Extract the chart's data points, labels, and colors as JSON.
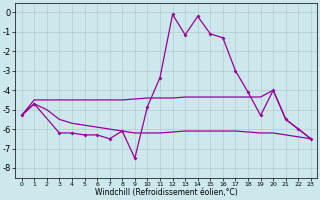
{
  "background_color": "#cce8ed",
  "grid_color": "#b0cccc",
  "line_color": "#990099",
  "xlabel": "Windchill (Refroidissement éolien,°C)",
  "x": [
    0,
    1,
    2,
    3,
    4,
    5,
    6,
    7,
    8,
    9,
    10,
    11,
    12,
    13,
    14,
    15,
    16,
    17,
    18,
    19,
    20,
    21,
    22,
    23
  ],
  "line_upper_x": [
    0,
    1,
    2,
    3,
    4,
    5,
    6,
    7,
    8,
    9,
    10,
    11,
    12,
    13,
    14,
    15,
    16,
    17,
    18,
    19,
    20,
    21,
    22,
    23
  ],
  "line_upper_y": [
    -5.3,
    -4.5,
    -4.5,
    -4.5,
    -4.5,
    -4.5,
    -4.5,
    -4.5,
    -4.5,
    -4.45,
    -4.4,
    -4.4,
    -4.4,
    -4.35,
    -4.35,
    -4.35,
    -4.35,
    -4.35,
    -4.35,
    -4.35,
    -4.0,
    -5.5,
    -6.0,
    -6.5
  ],
  "line_mid_x": [
    0,
    1,
    2,
    3,
    4,
    5,
    6,
    7,
    8,
    9,
    10,
    11,
    12,
    13,
    14,
    15,
    16,
    17,
    18,
    19,
    20,
    21,
    22,
    23
  ],
  "line_mid_y": [
    -5.3,
    -4.7,
    -5.0,
    -5.5,
    -5.7,
    -5.8,
    -5.9,
    -6.0,
    -6.1,
    -6.2,
    -6.2,
    -6.2,
    -6.15,
    -6.1,
    -6.1,
    -6.1,
    -6.1,
    -6.1,
    -6.15,
    -6.2,
    -6.2,
    -6.3,
    -6.4,
    -6.5
  ],
  "line_jagged_x": [
    0,
    1,
    3,
    4,
    5,
    6,
    7,
    8,
    9,
    10,
    11,
    12,
    13,
    14,
    15,
    16,
    17,
    18,
    19,
    20,
    21,
    22,
    23
  ],
  "line_jagged_y": [
    -5.3,
    -4.7,
    -6.2,
    -6.2,
    -6.3,
    -6.3,
    -6.5,
    -6.1,
    -7.5,
    -4.85,
    -3.35,
    -0.1,
    -1.15,
    -0.2,
    -1.1,
    -1.3,
    -3.0,
    -4.1,
    -5.3,
    -4.0,
    -5.5,
    -6.0,
    -6.5
  ],
  "ylim": [
    -8.5,
    0.5
  ],
  "xlim": [
    -0.5,
    23.5
  ],
  "yticks": [
    0,
    -1,
    -2,
    -3,
    -4,
    -5,
    -6,
    -7,
    -8
  ],
  "xticks": [
    0,
    1,
    2,
    3,
    4,
    5,
    6,
    7,
    8,
    9,
    10,
    11,
    12,
    13,
    14,
    15,
    16,
    17,
    18,
    19,
    20,
    21,
    22,
    23
  ]
}
